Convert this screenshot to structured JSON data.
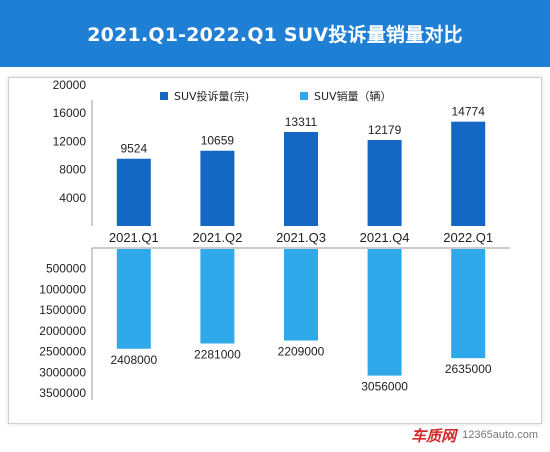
{
  "title": "2021.Q1-2022.Q1 SUV投诉量销量对比",
  "watermark": {
    "logo": "车质网",
    "url": "12365auto.com"
  },
  "colors": {
    "header": "#1f7fd4",
    "complaints": "#1468c4",
    "sales": "#2fa9ea"
  },
  "chart_data": [
    {
      "type": "bar",
      "categories": [
        "2021.Q1",
        "2021.Q2",
        "2021.Q3",
        "2021.Q4",
        "2022.Q1"
      ],
      "series": [
        {
          "name": "SUV投诉量(宗)",
          "values": [
            9524,
            10659,
            13311,
            12179,
            14774
          ]
        }
      ],
      "yticks": [
        "20000",
        "16000",
        "12000",
        "8000",
        "4000"
      ],
      "ylim": [
        0,
        24000
      ]
    },
    {
      "type": "bar",
      "categories": [
        "2021.Q1",
        "2021.Q2",
        "2021.Q3",
        "2021.Q4",
        "2022.Q1"
      ],
      "series": [
        {
          "name": "SUV销量（辆）",
          "values": [
            2408000,
            2281000,
            2209000,
            3056000,
            2635000
          ]
        }
      ],
      "yticks": [
        "500000",
        "1000000",
        "1500000",
        "2000000",
        "2500000",
        "3000000",
        "3500000"
      ],
      "ylim": [
        0,
        3500000
      ],
      "inverted": true
    }
  ]
}
